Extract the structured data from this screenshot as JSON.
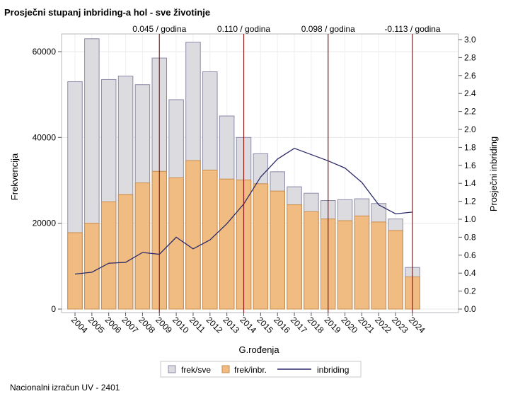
{
  "footnote": "Nacionalni izračun UV - 2401",
  "chart_data": {
    "type": "bar",
    "title": "Prosječni stupanj inbriding-a hol - sve životinje",
    "xlabel": "G.rođenja",
    "ylabel": "Frekvencija",
    "y2label": "Prosječni inbriding",
    "categories": [
      "2004",
      "2005",
      "2006",
      "2007",
      "2008",
      "2009",
      "2010",
      "2011",
      "2012",
      "2013",
      "2014",
      "2015",
      "2016",
      "2017",
      "2018",
      "2019",
      "2020",
      "2021",
      "2022",
      "2023",
      "2024"
    ],
    "ylim": [
      0,
      66000
    ],
    "yticks": [
      0,
      20000,
      40000,
      60000
    ],
    "y2lim": [
      0,
      3.0
    ],
    "y2ticks": [
      0.0,
      0.2,
      0.4,
      0.6,
      0.8,
      1.0,
      1.2,
      1.4,
      1.6,
      1.8,
      2.0,
      2.2,
      2.4,
      2.6,
      2.8,
      3.0
    ],
    "grid": true,
    "legend_position": "bottom",
    "series": [
      {
        "name": "frek/sve",
        "type": "bar",
        "color": "#dcdce0",
        "stroke": "#8a8aa8",
        "values": [
          53000,
          63000,
          53500,
          54300,
          52300,
          58500,
          48800,
          62200,
          55300,
          45000,
          40000,
          36200,
          32000,
          28500,
          27000,
          25300,
          25500,
          25700,
          24600,
          21000,
          9700
        ]
      },
      {
        "name": "frek/inbr.",
        "type": "bar",
        "color": "#f0bc82",
        "stroke": "#c98b4a",
        "values": [
          17800,
          20000,
          25000,
          26700,
          29400,
          32100,
          30600,
          34600,
          32400,
          30300,
          30100,
          29200,
          27500,
          24300,
          22700,
          21000,
          20600,
          21700,
          20300,
          18300,
          7500
        ]
      },
      {
        "name": "inbriding",
        "type": "line",
        "axis": "y2",
        "color": "#2a2a6a",
        "values": [
          0.39,
          0.41,
          0.51,
          0.52,
          0.63,
          0.61,
          0.8,
          0.67,
          0.77,
          0.95,
          1.17,
          1.47,
          1.67,
          1.79,
          1.72,
          1.65,
          1.57,
          1.41,
          1.16,
          1.06,
          1.08
        ]
      }
    ],
    "annotations": [
      {
        "x": "2009",
        "label": "0.045 / godina",
        "color": "#8b1a1a"
      },
      {
        "x": "2014",
        "label": "0.110 / godina",
        "color": "#8b1a1a"
      },
      {
        "x": "2019",
        "label": "0.098 / godina",
        "color": "#8b1a1a"
      },
      {
        "x": "2024",
        "label": "-0.113 / godina",
        "color": "#8b1a1a"
      }
    ]
  }
}
